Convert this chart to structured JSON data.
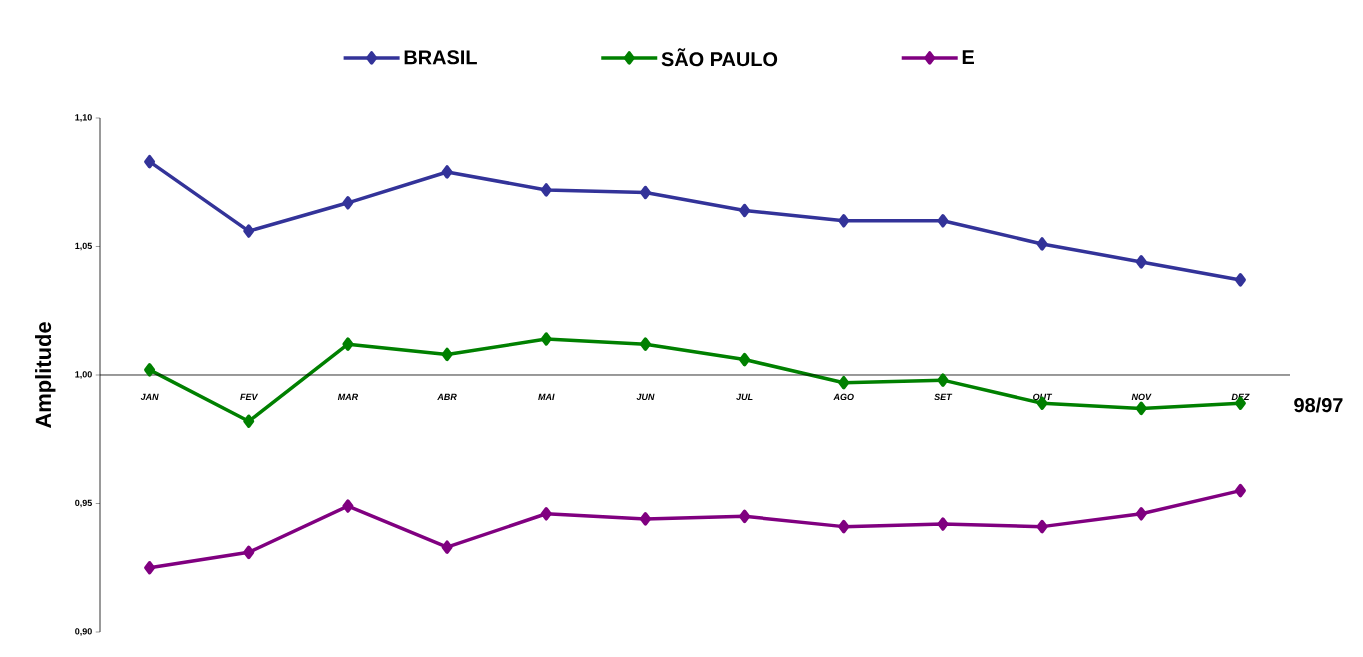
{
  "chart_data": {
    "type": "line",
    "xlabel": "98/97",
    "ylabel": "Amplitude",
    "categories": [
      "JAN",
      "FEV",
      "MAR",
      "ABR",
      "MAI",
      "JUN",
      "JUL",
      "AGO",
      "SET",
      "OUT",
      "NOV",
      "DEZ"
    ],
    "series": [
      {
        "name": "BRASIL",
        "color": "#333399",
        "values": [
          1.083,
          1.056,
          1.067,
          1.079,
          1.072,
          1.071,
          1.064,
          1.06,
          1.06,
          1.051,
          1.044,
          1.037
        ]
      },
      {
        "name": "SÃO PAULO",
        "color": "#008000",
        "values": [
          1.002,
          0.982,
          1.012,
          1.008,
          1.014,
          1.012,
          1.006,
          0.997,
          0.998,
          0.989,
          0.987,
          0.989
        ]
      },
      {
        "name": "E",
        "color": "#800080",
        "values": [
          0.925,
          0.931,
          0.949,
          0.933,
          0.946,
          0.944,
          0.945,
          0.941,
          0.942,
          0.941,
          0.946,
          0.955
        ]
      }
    ],
    "ylim": [
      0.9,
      1.1
    ],
    "yticks": [
      {
        "value": 0.9,
        "label": "0,90"
      },
      {
        "value": 0.95,
        "label": "0,95"
      },
      {
        "value": 1.0,
        "label": "1,00"
      },
      {
        "value": 1.05,
        "label": "1,05"
      },
      {
        "value": 1.1,
        "label": "1,10"
      }
    ],
    "legend": "top",
    "marker": "diamond"
  }
}
